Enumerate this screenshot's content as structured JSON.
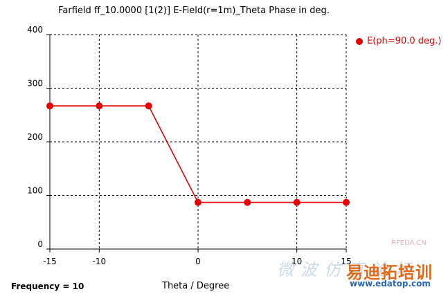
{
  "chart_data": {
    "type": "line",
    "title": "Farfield ff_10.0000 [1(2)] E-Field(r=1m)_Theta Phase in deg.",
    "xlabel": "Theta / Degree",
    "ylabel": "",
    "xlim": [
      -15,
      15
    ],
    "ylim": [
      0,
      400
    ],
    "xticks": [
      -15,
      -10,
      0,
      10,
      15
    ],
    "yticks": [
      0,
      100,
      200,
      300,
      400
    ],
    "grid": true,
    "legend_position": "top-right",
    "series": [
      {
        "name": "E(ph=90.0 deg.)",
        "color": "#e60000",
        "x": [
          -15,
          -10,
          -5,
          0,
          5,
          10,
          15
        ],
        "y": [
          267,
          267,
          267,
          87,
          87,
          87,
          87
        ]
      }
    ],
    "annotations": [
      "Frequency = 10"
    ]
  },
  "watermark": {
    "chinese_text": "微波仿真论坛",
    "logo_text": "易迪拓培训",
    "url_text": "www.edatop.com",
    "corner_text": "RFEDA.CN"
  }
}
